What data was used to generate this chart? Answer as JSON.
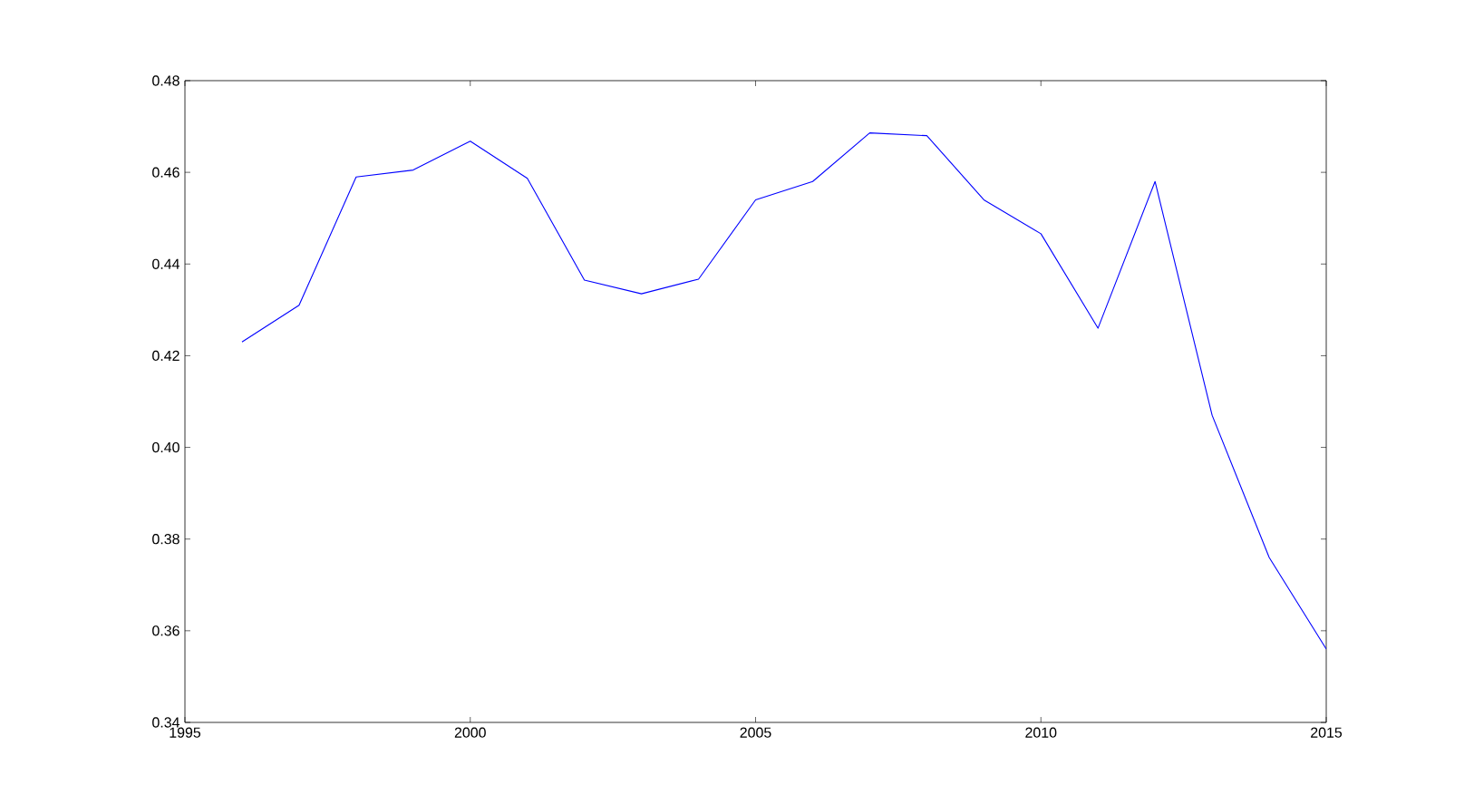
{
  "chart_data": {
    "type": "line",
    "x": [
      1996,
      1997,
      1998,
      1999,
      2000,
      2001,
      2002,
      2003,
      2004,
      2005,
      2006,
      2007,
      2008,
      2009,
      2010,
      2011,
      2012,
      2013,
      2014,
      2015
    ],
    "series": [
      {
        "color": "#0000ff",
        "values": [
          0.423,
          0.431,
          0.459,
          0.4605,
          0.4668,
          0.4587,
          0.4365,
          0.4335,
          0.4367,
          0.454,
          0.458,
          0.4686,
          0.468,
          0.454,
          0.4466,
          0.426,
          0.458,
          0.407,
          0.376,
          0.356
        ]
      }
    ],
    "xlim": [
      1995,
      2015
    ],
    "xticks": [
      1995,
      2000,
      2005,
      2010,
      2015
    ],
    "ylim": [
      0.34,
      0.48
    ],
    "yticks": [
      0.34,
      0.36,
      0.38,
      {
        "value": 0.4,
        "label": "0.40"
      },
      0.42,
      0.44,
      0.46,
      0.48
    ],
    "grid": false,
    "marker": "none",
    "line_style": "solid"
  }
}
